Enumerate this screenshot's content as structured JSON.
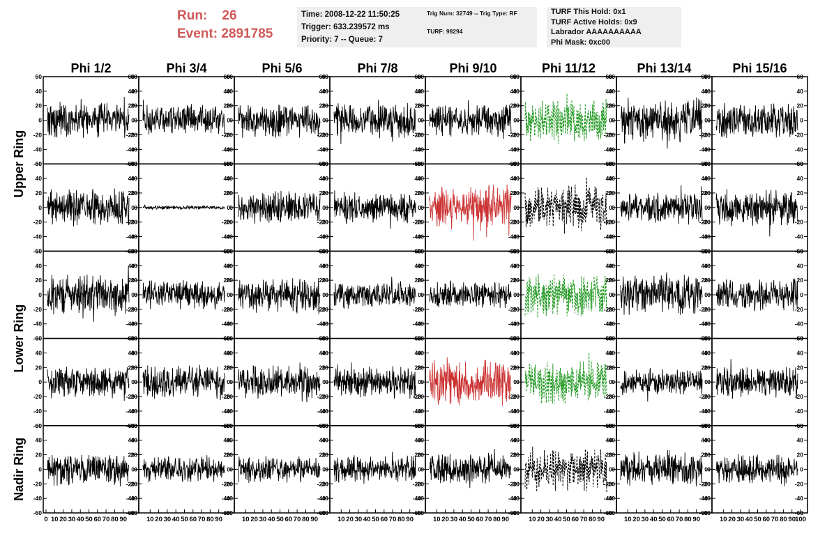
{
  "header": {
    "run_label": "Run:",
    "run_value": "26",
    "event_label": "Event:",
    "event_value": "2891785",
    "time": "Time: 2008-12-22 11:50:25",
    "trigger": "Trigger: 633.239572 ms",
    "priority": "Priority: 7 -- Queue: 7",
    "trig_num": "Trig Num: 32749 -- Trig Type: RF",
    "turf": "TURF: 98294",
    "turf_this_hold": "TURF This Hold: 0x1",
    "turf_active_holds": "TURF Active Holds: 0x9",
    "labrador": "Labrador AAAAAAAAAA",
    "phi_mask": "Phi Mask: 0xc00"
  },
  "colors": {
    "header_red": "#d05858",
    "trace_default": "#000000",
    "trace_red": "#cc3333",
    "trace_green": "#229922",
    "info_box_bg": "#efefef"
  },
  "chart_data": {
    "type": "line",
    "title": "",
    "columns": [
      "Phi 1/2",
      "Phi 3/4",
      "Phi 5/6",
      "Phi 7/8",
      "Phi 9/10",
      "Phi 11/12",
      "Phi 13/14",
      "Phi 15/16"
    ],
    "row_groups": [
      "Upper Ring",
      "Lower Ring",
      "Nadir Ring"
    ],
    "rows_per_panel": 5,
    "ylim": [
      -60,
      60
    ],
    "yticks": [
      -60,
      -40,
      -20,
      0,
      20,
      40,
      60
    ],
    "xlim": [
      0,
      100
    ],
    "xticks": [
      0,
      10,
      20,
      30,
      40,
      50,
      60,
      70,
      80,
      90,
      100
    ],
    "grid": false,
    "panels": [
      [
        {
          "style": "solid",
          "color": "black",
          "amp": 28
        },
        {
          "style": "solid",
          "color": "black",
          "amp": 24
        },
        {
          "style": "solid",
          "color": "black",
          "amp": 26
        },
        {
          "style": "solid",
          "color": "black",
          "amp": 25
        },
        {
          "style": "solid",
          "color": "black",
          "amp": 25
        },
        {
          "style": "dashed",
          "color": "green",
          "amp": 33
        },
        {
          "style": "solid",
          "color": "black",
          "amp": 33
        },
        {
          "style": "solid",
          "color": "black",
          "amp": 28
        }
      ],
      [
        {
          "style": "solid",
          "color": "black",
          "amp": 27
        },
        {
          "style": "solid",
          "color": "black",
          "amp": 3
        },
        {
          "style": "solid",
          "color": "black",
          "amp": 25
        },
        {
          "style": "solid",
          "color": "black",
          "amp": 24
        },
        {
          "style": "solid",
          "color": "red",
          "amp": 35
        },
        {
          "style": "dashed",
          "color": "black",
          "amp": 33
        },
        {
          "style": "solid",
          "color": "black",
          "amp": 24
        },
        {
          "style": "solid",
          "color": "black",
          "amp": 28
        }
      ],
      [
        {
          "style": "solid",
          "color": "black",
          "amp": 30
        },
        {
          "style": "solid",
          "color": "black",
          "amp": 22
        },
        {
          "style": "solid",
          "color": "black",
          "amp": 26
        },
        {
          "style": "solid",
          "color": "black",
          "amp": 20
        },
        {
          "style": "solid",
          "color": "black",
          "amp": 20
        },
        {
          "style": "dashed",
          "color": "green",
          "amp": 33
        },
        {
          "style": "solid",
          "color": "black",
          "amp": 30
        },
        {
          "style": "solid",
          "color": "black",
          "amp": 25
        }
      ],
      [
        {
          "style": "solid",
          "color": "black",
          "amp": 25
        },
        {
          "style": "solid",
          "color": "black",
          "amp": 24
        },
        {
          "style": "solid",
          "color": "black",
          "amp": 24
        },
        {
          "style": "solid",
          "color": "black",
          "amp": 26
        },
        {
          "style": "solid",
          "color": "red",
          "amp": 35
        },
        {
          "style": "dashed",
          "color": "green",
          "amp": 33
        },
        {
          "style": "solid",
          "color": "black",
          "amp": 20
        },
        {
          "style": "solid",
          "color": "black",
          "amp": 24
        }
      ],
      [
        {
          "style": "solid",
          "color": "black",
          "amp": 24
        },
        {
          "style": "solid",
          "color": "black",
          "amp": 20
        },
        {
          "style": "solid",
          "color": "black",
          "amp": 20
        },
        {
          "style": "solid",
          "color": "black",
          "amp": 20
        },
        {
          "style": "solid",
          "color": "black",
          "amp": 24
        },
        {
          "style": "dashed",
          "color": "black",
          "amp": 33
        },
        {
          "style": "solid",
          "color": "black",
          "amp": 24
        },
        {
          "style": "solid",
          "color": "black",
          "amp": 24
        }
      ]
    ]
  }
}
